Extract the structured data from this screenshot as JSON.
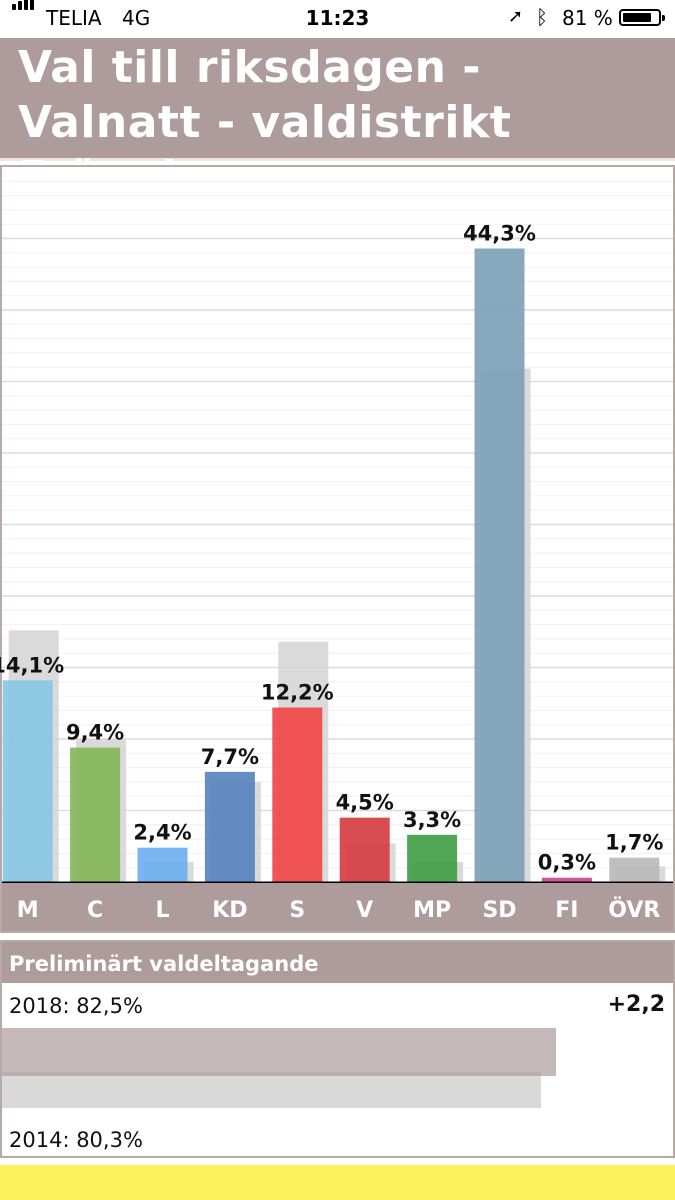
{
  "status_bar": {
    "carrier": "TELIA",
    "network": "4G",
    "time": "11:23",
    "battery_text": "81 %",
    "battery_level": 0.81,
    "signal_bars": 4,
    "icons": [
      "signal-bars-icon",
      "location-arrow-icon",
      "bluetooth-icon",
      "battery-icon"
    ]
  },
  "header": {
    "title": "Val till riksdagen - Valnatt - valdistrikt Fränninge"
  },
  "chart_data": {
    "type": "bar",
    "categories": [
      "M",
      "C",
      "L",
      "KD",
      "S",
      "V",
      "MP",
      "SD",
      "FI",
      "ÖVR"
    ],
    "series": [
      {
        "values": [
          14.1,
          9.4,
          2.4,
          7.7,
          12.2,
          4.5,
          3.3,
          44.3,
          0.3,
          1.7
        ],
        "labels": [
          "14,1%",
          "9,4%",
          "2,4%",
          "7,7%",
          "12,2%",
          "4,5%",
          "3,3%",
          "44,3%",
          "0,3%",
          "1,7%"
        ],
        "colors": [
          "#86c5e3",
          "#82b557",
          "#6aaef0",
          "#5581be",
          "#f04242",
          "#d5383f",
          "#3e9c44",
          "#7b9fb6",
          "#cf3f8f",
          "#b8b8b8"
        ]
      },
      {
        "values": [
          17.6,
          10.0,
          1.4,
          7.0,
          16.8,
          2.7,
          1.4,
          35.9,
          0.0,
          1.1
        ],
        "color": "#d3d3d3"
      }
    ],
    "ylim": [
      0,
      50
    ],
    "grid": true,
    "legend": "none"
  },
  "turnout": {
    "heading": "Preliminärt valdeltagande",
    "current_label": "2018: 82,5%",
    "current_value": 82.5,
    "previous_label": "2014: 80,3%",
    "previous_value": 80.3,
    "change_label": "+2,2"
  },
  "colors": {
    "header_bg": "#ad9c9b",
    "bottom_strip": "#fbf25e"
  }
}
